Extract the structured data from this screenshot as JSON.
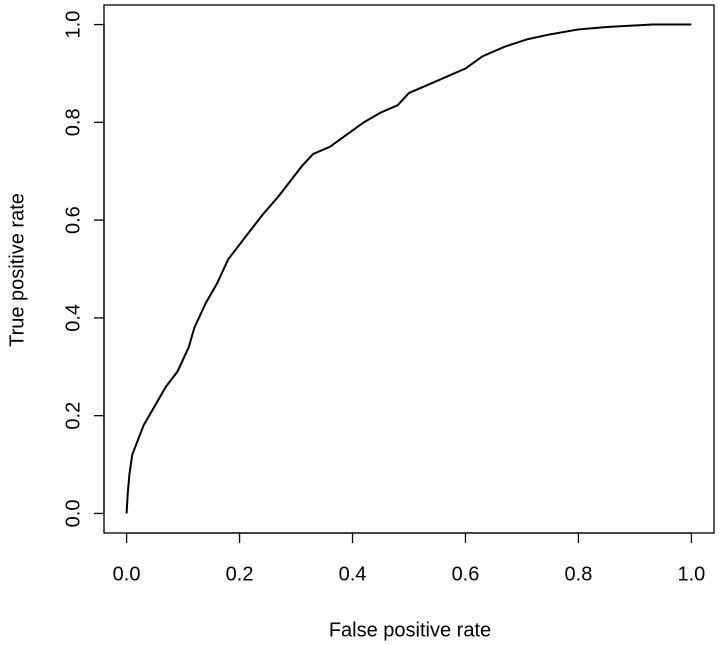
{
  "chart_data": {
    "type": "line",
    "x_label": "False positive rate",
    "y_label": "True positive rate",
    "x": [
      0,
      0.002,
      0.005,
      0.01,
      0.02,
      0.03,
      0.05,
      0.07,
      0.09,
      0.11,
      0.12,
      0.14,
      0.16,
      0.18,
      0.2,
      0.22,
      0.24,
      0.27,
      0.29,
      0.31,
      0.33,
      0.36,
      0.39,
      0.42,
      0.45,
      0.48,
      0.5,
      0.53,
      0.56,
      0.6,
      0.63,
      0.67,
      0.71,
      0.75,
      0.8,
      0.85,
      0.93,
      1.0
    ],
    "series": [
      {
        "color": "#000000",
        "values": [
          0,
          0.04,
          0.08,
          0.12,
          0.15,
          0.18,
          0.22,
          0.26,
          0.29,
          0.34,
          0.38,
          0.43,
          0.47,
          0.52,
          0.55,
          0.58,
          0.61,
          0.65,
          0.68,
          0.71,
          0.735,
          0.75,
          0.775,
          0.8,
          0.82,
          0.835,
          0.86,
          0.875,
          0.89,
          0.91,
          0.935,
          0.955,
          0.97,
          0.98,
          0.99,
          0.995,
          1.0,
          1.0
        ]
      }
    ],
    "xlim": [
      -0.04,
      1.04
    ],
    "ylim": [
      -0.04,
      1.04
    ],
    "xticks": [
      {
        "value": 0,
        "label": "0.0"
      },
      0.2,
      0.4,
      0.6,
      0.8,
      {
        "value": 1,
        "label": "1.0"
      }
    ],
    "yticks": [
      {
        "value": 0,
        "label": "0.0"
      },
      0.2,
      0.4,
      0.6,
      0.8,
      {
        "value": 1,
        "label": "1.0"
      }
    ],
    "grid": false
  }
}
